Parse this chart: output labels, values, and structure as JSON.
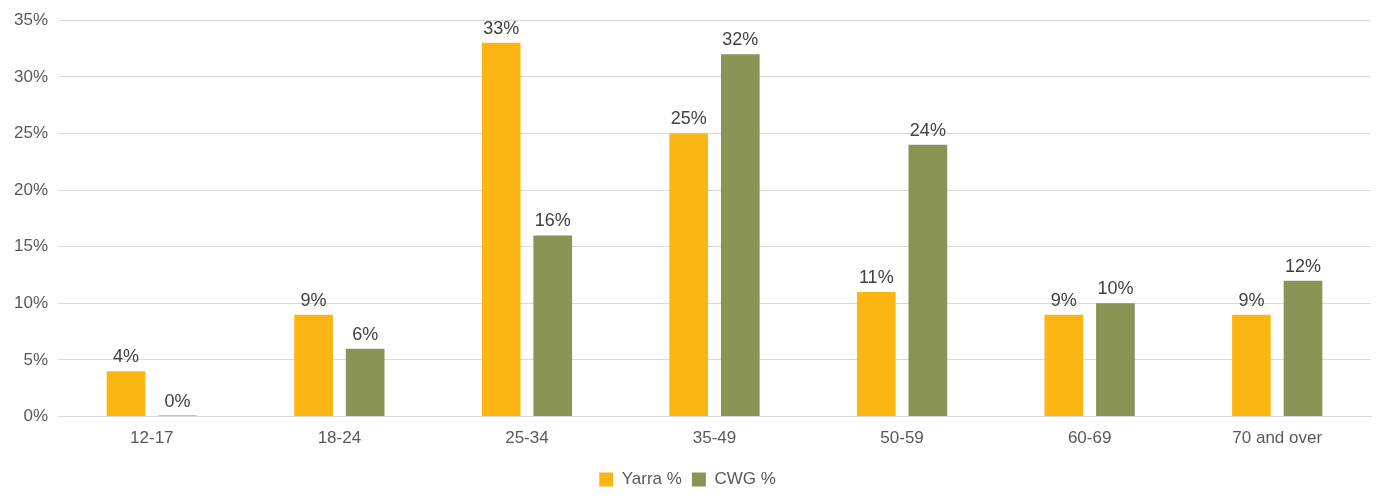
{
  "chart_data": {
    "type": "bar",
    "categories": [
      "12-17",
      "18-24",
      "25-34",
      "35-49",
      "50-59",
      "60-69",
      "70 and over"
    ],
    "series": [
      {
        "name": "Yarra %",
        "color": "#fbb614",
        "values": [
          4,
          9,
          33,
          25,
          11,
          9,
          9
        ],
        "value_labels": [
          "4%",
          "9%",
          "33%",
          "25%",
          "11%",
          "9%",
          "9%"
        ]
      },
      {
        "name": "CWG %",
        "color": "#8a9455",
        "values": [
          0,
          6,
          16,
          32,
          24,
          10,
          12
        ],
        "value_labels": [
          "0%",
          "6%",
          "16%",
          "32%",
          "24%",
          "10%",
          "12%"
        ]
      }
    ],
    "ylim": [
      0,
      35
    ],
    "yticks": [
      {
        "value": 0,
        "label": "0%"
      },
      {
        "value": 5,
        "label": "5%"
      },
      {
        "value": 10,
        "label": "10%"
      },
      {
        "value": 15,
        "label": "15%"
      },
      {
        "value": 20,
        "label": "20%"
      },
      {
        "value": 25,
        "label": "25%"
      },
      {
        "value": 30,
        "label": "30%"
      },
      {
        "value": 35,
        "label": "35%"
      }
    ],
    "grid": "y",
    "legend": "bottom"
  }
}
